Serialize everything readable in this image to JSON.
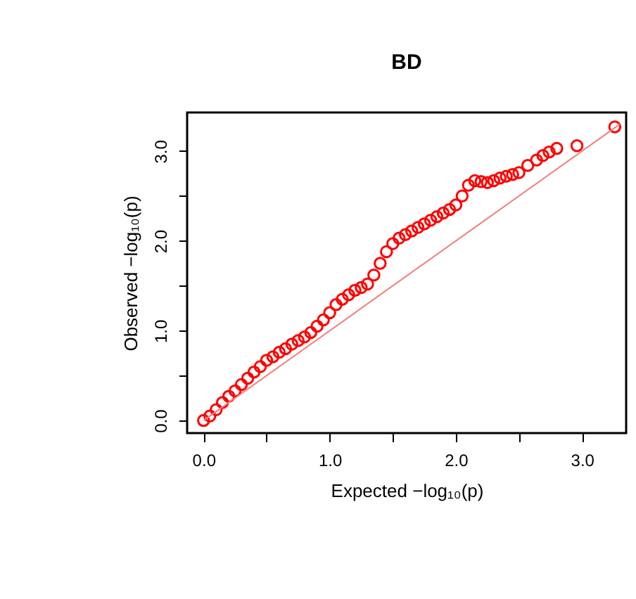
{
  "chart_data": {
    "type": "scatter",
    "title": "BD",
    "xlabel": "Expected −log₁₀(p)",
    "ylabel": "Observed −log₁₀(p)",
    "marker": "circle",
    "grid": false,
    "xlim": [
      -0.13,
      3.35
    ],
    "ylim": [
      -0.14,
      3.43
    ],
    "xticks": [
      {
        "value": 0,
        "label": "0.0"
      },
      {
        "value": 0.5,
        "label": null
      },
      {
        "value": 1,
        "label": "1.0"
      },
      {
        "value": 1.5,
        "label": null
      },
      {
        "value": 2,
        "label": "2.0"
      },
      {
        "value": 2.5,
        "label": null
      },
      {
        "value": 3,
        "label": "3.0"
      }
    ],
    "yticks": [
      {
        "value": 0,
        "label": "0.0"
      },
      {
        "value": 0.5,
        "label": null
      },
      {
        "value": 1,
        "label": "1.0"
      },
      {
        "value": 1.5,
        "label": null
      },
      {
        "value": 2,
        "label": "2.0"
      },
      {
        "value": 2.5,
        "label": null
      },
      {
        "value": 3,
        "label": "3.0"
      }
    ],
    "series": [
      {
        "type": "scatter",
        "color": "#ff0000",
        "x": [
          0,
          0.05,
          0.1,
          0.15,
          0.2,
          0.25,
          0.3,
          0.35,
          0.4,
          0.45,
          0.5,
          0.55,
          0.6,
          0.65,
          0.7,
          0.75,
          0.8,
          0.85,
          0.9,
          0.95,
          1.0,
          1.05,
          1.1,
          1.15,
          1.2,
          1.25,
          1.3,
          1.35,
          1.4,
          1.45,
          1.5,
          1.55,
          1.6,
          1.65,
          1.7,
          1.75,
          1.8,
          1.85,
          1.9,
          1.95,
          2.0,
          2.05,
          2.1,
          2.15,
          2.2,
          2.25,
          2.3,
          2.35,
          2.4,
          2.45,
          2.5,
          2.57,
          2.64,
          2.69,
          2.74,
          2.8,
          2.96,
          3.26
        ],
        "values": [
          0,
          0.05,
          0.12,
          0.2,
          0.27,
          0.33,
          0.4,
          0.47,
          0.54,
          0.6,
          0.67,
          0.71,
          0.76,
          0.8,
          0.85,
          0.89,
          0.93,
          0.98,
          1.05,
          1.12,
          1.2,
          1.29,
          1.35,
          1.4,
          1.45,
          1.48,
          1.52,
          1.62,
          1.75,
          1.88,
          1.97,
          2.03,
          2.07,
          2.11,
          2.15,
          2.19,
          2.23,
          2.27,
          2.31,
          2.35,
          2.4,
          2.5,
          2.62,
          2.67,
          2.66,
          2.65,
          2.67,
          2.7,
          2.72,
          2.74,
          2.76,
          2.84,
          2.9,
          2.95,
          2.99,
          3.03,
          3.06,
          3.27
        ]
      },
      {
        "type": "line",
        "marker": "none",
        "color": "#f08080",
        "x": [
          0,
          3.3
        ],
        "values": [
          0,
          3.3
        ]
      }
    ]
  }
}
